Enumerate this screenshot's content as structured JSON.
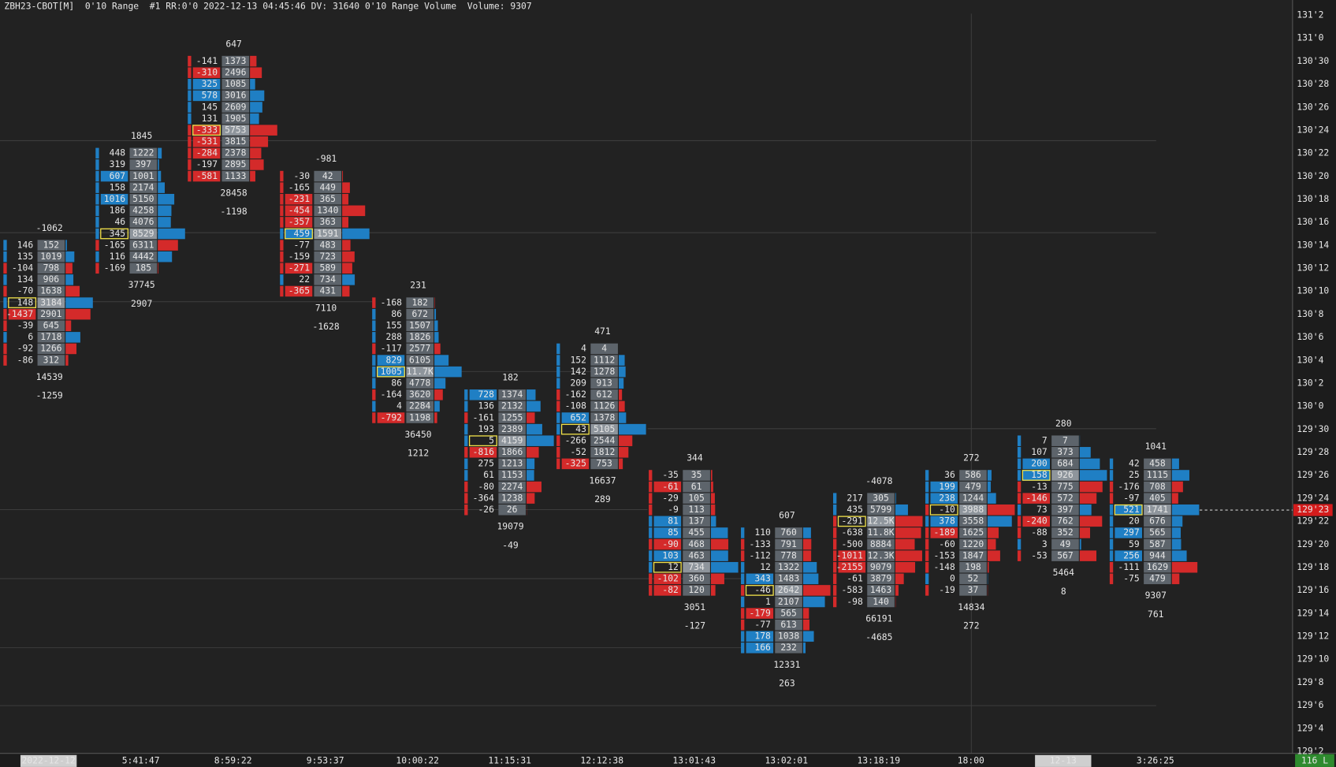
{
  "header": {
    "text": "ZBH23-CBOT[M]  0'10 Range  #1 RR:0'0 2022-12-13 04:45:46 DV: 31640 0'10 Range Volume  Volume: 9307"
  },
  "price_axis": {
    "labels": [
      "131'2",
      "131'0",
      "130'30",
      "130'28",
      "130'26",
      "130'24",
      "130'22",
      "130'20",
      "130'18",
      "130'16",
      "130'14",
      "130'12",
      "130'10",
      "130'8",
      "130'6",
      "130'4",
      "130'2",
      "130'0",
      "129'30",
      "129'28",
      "129'26",
      "129'24",
      "129'22",
      "129'20",
      "129'18",
      "129'16",
      "129'14",
      "129'12",
      "129'10",
      "129'8",
      "129'6",
      "129'4",
      "129'2"
    ],
    "current_price": "129'23"
  },
  "time_axis": {
    "labels": [
      "2022-12-12",
      "5:41:47",
      "8:59:22",
      "9:53:37",
      "10:00:22",
      "11:15:31",
      "12:12:38",
      "13:01:43",
      "13:02:01",
      "13:18:19",
      "18:00",
      "12-13",
      "3:26:25"
    ]
  },
  "status": "116 L",
  "bars": [
    {
      "top": -1062,
      "total": 14539,
      "delta": -1259,
      "rows": [
        {
          "delta": 146,
          "volume": 152
        },
        {
          "delta": 135,
          "volume": 1019
        },
        {
          "delta": -104,
          "volume": 798
        },
        {
          "delta": 134,
          "volume": 906
        },
        {
          "delta": -70,
          "volume": 1638
        },
        {
          "delta": 148,
          "volume": 3184
        },
        {
          "delta": -1437,
          "volume": 2901
        },
        {
          "delta": -39,
          "volume": 645
        },
        {
          "delta": 6,
          "volume": 1718
        },
        {
          "delta": -92,
          "volume": 1266
        },
        {
          "delta": -86,
          "volume": 312
        }
      ]
    },
    {
      "top": 1845,
      "total": 37745,
      "delta": 2907,
      "rows": [
        {
          "delta": 448,
          "volume": 1222
        },
        {
          "delta": 319,
          "volume": 397
        },
        {
          "delta": 607,
          "volume": 1001
        },
        {
          "delta": 158,
          "volume": 2174
        },
        {
          "delta": 1016,
          "volume": 5150
        },
        {
          "delta": 186,
          "volume": 4258
        },
        {
          "delta": 46,
          "volume": 4076
        },
        {
          "delta": 345,
          "volume": 8529
        },
        {
          "delta": -165,
          "volume": 6311
        },
        {
          "delta": 116,
          "volume": 4442
        },
        {
          "delta": -169,
          "volume": 185
        }
      ]
    },
    {
      "top": 647,
      "total": 28458,
      "delta": -1198,
      "rows": [
        {
          "delta": -141,
          "volume": 1373
        },
        {
          "delta": -310,
          "volume": 2496
        },
        {
          "delta": 325,
          "volume": 1085
        },
        {
          "delta": 578,
          "volume": 3016
        },
        {
          "delta": 145,
          "volume": 2609
        },
        {
          "delta": 131,
          "volume": 1905
        },
        {
          "delta": -333,
          "volume": 5753
        },
        {
          "delta": -531,
          "volume": 3815
        },
        {
          "delta": -284,
          "volume": 2378
        },
        {
          "delta": -197,
          "volume": 2895
        },
        {
          "delta": -581,
          "volume": 1133
        }
      ]
    },
    {
      "top": -981,
      "total": 7110,
      "delta": -1628,
      "rows": [
        {
          "delta": -30,
          "volume": 42
        },
        {
          "delta": -165,
          "volume": 449
        },
        {
          "delta": -231,
          "volume": 365
        },
        {
          "delta": -454,
          "volume": 1340
        },
        {
          "delta": -357,
          "volume": 363
        },
        {
          "delta": 459,
          "volume": 1591
        },
        {
          "delta": -77,
          "volume": 483
        },
        {
          "delta": -159,
          "volume": 723
        },
        {
          "delta": -271,
          "volume": 589
        },
        {
          "delta": 22,
          "volume": 734
        },
        {
          "delta": -365,
          "volume": 431
        }
      ]
    },
    {
      "top": 231,
      "total": 36450,
      "delta": 1212,
      "rows": [
        {
          "delta": -168,
          "volume": 182
        },
        {
          "delta": 86,
          "volume": 672
        },
        {
          "delta": 155,
          "volume": 1507
        },
        {
          "delta": 288,
          "volume": 1826
        },
        {
          "delta": -117,
          "volume": 2577
        },
        {
          "delta": 829,
          "volume": 6105
        },
        {
          "delta": 1005,
          "volume": {
            "value": 11700,
            "label": "11.7K"
          }
        },
        {
          "delta": 86,
          "volume": 4778
        },
        {
          "delta": -164,
          "volume": 3620
        },
        {
          "delta": 4,
          "volume": 2284
        },
        {
          "delta": -792,
          "volume": 1198
        }
      ]
    },
    {
      "top": 182,
      "total": 19079,
      "delta": -49,
      "rows": [
        {
          "delta": 728,
          "volume": 1374
        },
        {
          "delta": 136,
          "volume": 2132
        },
        {
          "delta": -161,
          "volume": 1255
        },
        {
          "delta": 193,
          "volume": 2389
        },
        {
          "delta": 5,
          "volume": 4159
        },
        {
          "delta": -816,
          "volume": 1866
        },
        {
          "delta": 275,
          "volume": 1213
        },
        {
          "delta": 61,
          "volume": 1153
        },
        {
          "delta": -80,
          "volume": 2274
        },
        {
          "delta": -364,
          "volume": 1238
        },
        {
          "delta": -26,
          "volume": 26
        }
      ]
    },
    {
      "top": 471,
      "total": 16637,
      "delta": 289,
      "rows": [
        {
          "delta": 4,
          "volume": 4
        },
        {
          "delta": 152,
          "volume": 1112
        },
        {
          "delta": 142,
          "volume": 1278
        },
        {
          "delta": 209,
          "volume": 913
        },
        {
          "delta": -162,
          "volume": 612
        },
        {
          "delta": -108,
          "volume": 1126
        },
        {
          "delta": 652,
          "volume": 1378
        },
        {
          "delta": 43,
          "volume": 5105
        },
        {
          "delta": -266,
          "volume": 2544
        },
        {
          "delta": -52,
          "volume": 1812
        },
        {
          "delta": -325,
          "volume": 753
        }
      ]
    },
    {
      "top": 344,
      "total": 3051,
      "delta": -127,
      "rows": [
        {
          "delta": -35,
          "volume": 35
        },
        {
          "delta": -61,
          "volume": 61
        },
        {
          "delta": -29,
          "volume": 105
        },
        {
          "delta": -9,
          "volume": 113
        },
        {
          "delta": 81,
          "volume": 137
        },
        {
          "delta": 85,
          "volume": 455
        },
        {
          "delta": -90,
          "volume": 468
        },
        {
          "delta": 103,
          "volume": 463
        },
        {
          "delta": 12,
          "volume": 734
        },
        {
          "delta": -102,
          "volume": 360
        },
        {
          "delta": -82,
          "volume": 120
        }
      ]
    },
    {
      "top": 607,
      "total": 12331,
      "delta": 263,
      "rows": [
        {
          "delta": 110,
          "volume": 760
        },
        {
          "delta": -133,
          "volume": 791
        },
        {
          "delta": -112,
          "volume": 778
        },
        {
          "delta": 12,
          "volume": 1322
        },
        {
          "delta": 343,
          "volume": 1483
        },
        {
          "delta": -46,
          "volume": 2642
        },
        {
          "delta": 1,
          "volume": 2107
        },
        {
          "delta": -179,
          "volume": 565
        },
        {
          "delta": -77,
          "volume": 613
        },
        {
          "delta": 178,
          "volume": 1038
        },
        {
          "delta": 166,
          "volume": 232
        }
      ]
    },
    {
      "top": -4078,
      "total": 66191,
      "delta": -4685,
      "rows": [
        {
          "delta": 217,
          "volume": 305
        },
        {
          "delta": 435,
          "volume": 5799
        },
        {
          "delta": -291,
          "volume": {
            "value": 12500,
            "label": "12.5K"
          }
        },
        {
          "delta": -638,
          "volume": {
            "value": 11800,
            "label": "11.8K"
          }
        },
        {
          "delta": -500,
          "volume": 8884
        },
        {
          "delta": -1011,
          "volume": {
            "value": 12300,
            "label": "12.3K"
          }
        },
        {
          "delta": -2155,
          "volume": 9079
        },
        {
          "delta": -61,
          "volume": 3879
        },
        {
          "delta": -583,
          "volume": 1463
        },
        {
          "delta": -98,
          "volume": 140
        }
      ]
    },
    {
      "top": 272,
      "total": 14834,
      "delta": 272,
      "rows": [
        {
          "delta": 36,
          "volume": 586
        },
        {
          "delta": 199,
          "volume": 479
        },
        {
          "delta": 238,
          "volume": 1244
        },
        {
          "delta": -10,
          "volume": 3988
        },
        {
          "delta": 378,
          "volume": 3558
        },
        {
          "delta": -189,
          "volume": 1625
        },
        {
          "delta": -60,
          "volume": 1220
        },
        {
          "delta": -153,
          "volume": 1847
        },
        {
          "delta": -148,
          "volume": 198
        },
        {
          "delta": 0,
          "volume": 52
        },
        {
          "delta": -19,
          "volume": 37
        }
      ]
    },
    {
      "top": 280,
      "total": 5464,
      "delta": 8,
      "rows": [
        {
          "delta": 7,
          "volume": 7
        },
        {
          "delta": 107,
          "volume": 373
        },
        {
          "delta": 200,
          "volume": 684
        },
        {
          "delta": 158,
          "volume": 926
        },
        {
          "delta": -13,
          "volume": 775
        },
        {
          "delta": -146,
          "volume": 572
        },
        {
          "delta": 73,
          "volume": 397
        },
        {
          "delta": -240,
          "volume": 762
        },
        {
          "delta": -88,
          "volume": 352
        },
        {
          "delta": 3,
          "volume": 49
        },
        {
          "delta": -53,
          "volume": 567
        }
      ]
    },
    {
      "top": 1041,
      "total": 9307,
      "delta": 761,
      "rows": [
        {
          "delta": 42,
          "volume": 458
        },
        {
          "delta": 25,
          "volume": 1115
        },
        {
          "delta": -176,
          "volume": 708
        },
        {
          "delta": -97,
          "volume": 405
        },
        {
          "delta": 521,
          "volume": 1741
        },
        {
          "delta": 20,
          "volume": 676
        },
        {
          "delta": 297,
          "volume": 565
        },
        {
          "delta": 59,
          "volume": 587
        },
        {
          "delta": 256,
          "volume": 944
        },
        {
          "delta": -111,
          "volume": 1629
        },
        {
          "delta": -75,
          "volume": 479
        }
      ]
    }
  ]
}
